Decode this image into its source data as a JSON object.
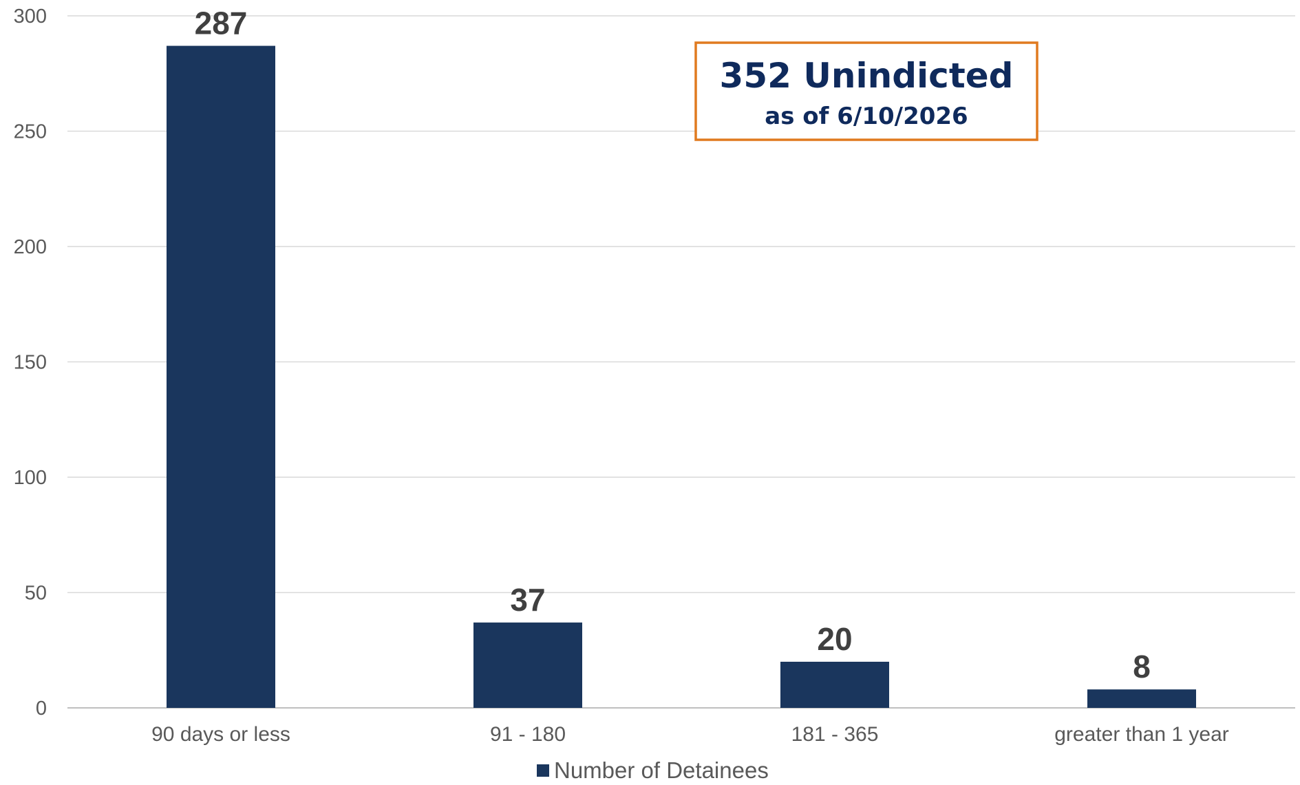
{
  "chart_data": {
    "type": "bar",
    "categories": [
      "90 days or less",
      "91 - 180",
      "181 - 365",
      "greater than 1 year"
    ],
    "series": [
      {
        "name": "Number of Detainees",
        "values": [
          287,
          37,
          20,
          8
        ]
      }
    ],
    "data_labels": [
      "287",
      "37",
      "20",
      "8"
    ],
    "y_ticks": [
      "0",
      "50",
      "100",
      "150",
      "200",
      "250",
      "300"
    ],
    "ylim": [
      0,
      300
    ],
    "grid": true,
    "legend_position": "bottom",
    "title": "",
    "xlabel": "",
    "ylabel": "",
    "annotation": {
      "title": "352 Unindicted",
      "subtitle": "as of 6/10/2026"
    },
    "colors": {
      "bar": "#1a365d",
      "grid": "#d9d9d9",
      "axis": "#bfbfbf",
      "callout_border": "#e07a1f",
      "callout_text": "#0f2a5c"
    }
  }
}
